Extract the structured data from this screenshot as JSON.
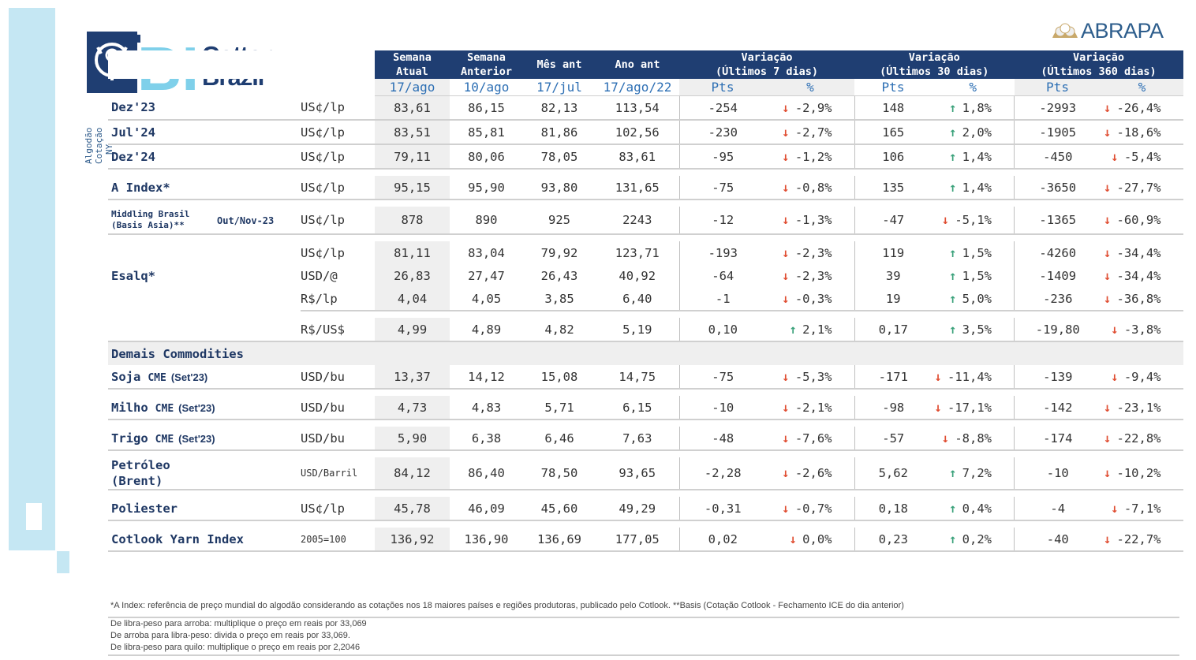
{
  "brand": {
    "logo_bi": "BI",
    "logo_title_1": "Cotton",
    "logo_title_2": "Brazil",
    "partner": "ABRAPA"
  },
  "side_label": {
    "line1": "Algodão",
    "line2": "Cotação",
    "line3": "NY"
  },
  "header": {
    "col_current": [
      "Semana",
      "Atual"
    ],
    "col_prev": [
      "Semana",
      "Anterior"
    ],
    "col_month": "Mês ant",
    "col_year": "Ano ant",
    "var7": [
      "Variação",
      "(Últimos 7 dias)"
    ],
    "var30": [
      "Variação",
      "(Últimos 30 dias)"
    ],
    "var360": [
      "Variação",
      "(Últimos 360 dias)"
    ]
  },
  "subheader": {
    "d1": "17/ago",
    "d2": "10/ago",
    "d3": "17/jul",
    "d4": "17/ago/22",
    "pts": "Pts",
    "pct": "%"
  },
  "rows": [
    {
      "name": "Dez'23",
      "unit": "US¢/lp",
      "v": [
        "83,61",
        "86,15",
        "82,13",
        "113,54"
      ],
      "p7": "-254",
      "c7": "-2,9%",
      "d7": "dn",
      "p30": "148",
      "c30": "1,8%",
      "d30": "up",
      "p360": "-2993",
      "c360": "-26,4%",
      "d360": "dn"
    },
    {
      "name": "Jul'24",
      "unit": "US¢/lp",
      "v": [
        "83,51",
        "85,81",
        "81,86",
        "102,56"
      ],
      "p7": "-230",
      "c7": "-2,7%",
      "d7": "dn",
      "p30": "165",
      "c30": "2,0%",
      "d30": "up",
      "p360": "-1905",
      "c360": "-18,6%",
      "d360": "dn"
    },
    {
      "name": "Dez'24",
      "unit": "US¢/lp",
      "v": [
        "79,11",
        "80,06",
        "78,05",
        "83,61"
      ],
      "p7": "-95",
      "c7": "-1,2%",
      "d7": "dn",
      "p30": "106",
      "c30": "1,4%",
      "d30": "up",
      "p360": "-450",
      "c360": "-5,4%",
      "d360": "dn"
    },
    {
      "name": "A Index*",
      "unit": "US¢/lp",
      "v": [
        "95,15",
        "95,90",
        "93,80",
        "131,65"
      ],
      "p7": "-75",
      "c7": "-0,8%",
      "d7": "dn",
      "p30": "135",
      "c30": "1,4%",
      "d30": "up",
      "p360": "-3650",
      "c360": "-27,7%",
      "d360": "dn"
    },
    {
      "name": "Middling Brasil",
      "name2": "(Basis Asia)**",
      "extra": "Out/Nov-23",
      "unit": "US¢/lp",
      "v": [
        "878",
        "890",
        "925",
        "2243"
      ],
      "p7": "-12",
      "c7": "-1,3%",
      "d7": "dn",
      "p30": "-47",
      "c30": "-5,1%",
      "d30": "dn",
      "p360": "-1365",
      "c360": "-60,9%",
      "d360": "dn"
    },
    {
      "name": "Esalq*",
      "unit": "US¢/lp",
      "v": [
        "81,11",
        "83,04",
        "79,92",
        "123,71"
      ],
      "p7": "-193",
      "c7": "-2,3%",
      "d7": "dn",
      "p30": "119",
      "c30": "1,5%",
      "d30": "up",
      "p360": "-4260",
      "c360": "-34,4%",
      "d360": "dn"
    },
    {
      "name": "",
      "unit": "USD/@",
      "v": [
        "26,83",
        "27,47",
        "26,43",
        "40,92"
      ],
      "p7": "-64",
      "c7": "-2,3%",
      "d7": "dn",
      "p30": "39",
      "c30": "1,5%",
      "d30": "up",
      "p360": "-1409",
      "c360": "-34,4%",
      "d360": "dn"
    },
    {
      "name": "",
      "unit": "R$/lp",
      "v": [
        "4,04",
        "4,05",
        "3,85",
        "6,40"
      ],
      "p7": "-1",
      "c7": "-0,3%",
      "d7": "dn",
      "p30": "19",
      "c30": "5,0%",
      "d30": "up",
      "p360": "-236",
      "c360": "-36,8%",
      "d360": "dn"
    },
    {
      "name": "",
      "unit": "R$/US$",
      "v": [
        "4,99",
        "4,89",
        "4,82",
        "5,19"
      ],
      "p7": "0,10",
      "c7": "2,1%",
      "d7": "up",
      "p30": "0,17",
      "c30": "3,5%",
      "d30": "up",
      "p360": "-19,80",
      "c360": "-3,8%",
      "d360": "dn"
    },
    {
      "section": "Demais Commodities"
    },
    {
      "name": "Soja",
      "name_suffix": "CME",
      "name_ext": "(Set'23)",
      "unit": "USD/bu",
      "v": [
        "13,37",
        "14,12",
        "15,08",
        "14,75"
      ],
      "p7": "-75",
      "c7": "-5,3%",
      "d7": "dn",
      "p30": "-171",
      "c30": "-11,4%",
      "d30": "dn",
      "p360": "-139",
      "c360": "-9,4%",
      "d360": "dn"
    },
    {
      "name": "Milho",
      "name_suffix": "CME",
      "name_ext": "(Set'23)",
      "unit": "USD/bu",
      "v": [
        "4,73",
        "4,83",
        "5,71",
        "6,15"
      ],
      "p7": "-10",
      "c7": "-2,1%",
      "d7": "dn",
      "p30": "-98",
      "c30": "-17,1%",
      "d30": "dn",
      "p360": "-142",
      "c360": "-23,1%",
      "d360": "dn"
    },
    {
      "name": "Trigo",
      "name_suffix": "CME",
      "name_ext": "(Set'23)",
      "unit": "USD/bu",
      "v": [
        "5,90",
        "6,38",
        "6,46",
        "7,63"
      ],
      "p7": "-48",
      "c7": "-7,6%",
      "d7": "dn",
      "p30": "-57",
      "c30": "-8,8%",
      "d30": "dn",
      "p360": "-174",
      "c360": "-22,8%",
      "d360": "dn"
    },
    {
      "name": "Petróleo",
      "name2": "(Brent)",
      "unit": "USD/Barril",
      "v": [
        "84,12",
        "86,40",
        "78,50",
        "93,65"
      ],
      "p7": "-2,28",
      "c7": "-2,6%",
      "d7": "dn",
      "p30": "5,62",
      "c30": "7,2%",
      "d30": "up",
      "p360": "-10",
      "c360": "-10,2%",
      "d360": "dn"
    },
    {
      "name": "Poliester",
      "unit": "US¢/lp",
      "v": [
        "45,78",
        "46,09",
        "45,60",
        "49,29"
      ],
      "p7": "-0,31",
      "c7": "-0,7%",
      "d7": "dn",
      "p30": "0,18",
      "c30": "0,4%",
      "d30": "up",
      "p360": "-4",
      "c360": "-7,1%",
      "d360": "dn"
    },
    {
      "name": "Cotlook Yarn Index",
      "unit": "2005=100",
      "v": [
        "136,92",
        "136,90",
        "136,69",
        "177,05"
      ],
      "p7": "0,02",
      "c7": "0,0%",
      "d7": "dn",
      "p30": "0,23",
      "c30": "0,2%",
      "d30": "up",
      "p360": "-40",
      "c360": "-22,7%",
      "d360": "dn"
    }
  ],
  "footnotes": {
    "n1": "*A Index: referência de preço mundial do algodão considerando as cotações nos 18 maiores países e regiões produtoras, publicado pelo Cotlook. **Basis (Cotação Cotlook - Fechamento ICE do dia anterior)",
    "n2": "De libra-peso para arroba: multiplique o preço em reais por 33,069",
    "n3": "De arroba para libra-peso: divida o preço em reais por 33,069.",
    "n4": "De libra-peso para quilo: multiplique o preço em reais por 2,2046"
  },
  "colors": {
    "header_bg": "#1f3e72",
    "accent_blue": "#2d6fb4",
    "up": "#3aa17a",
    "down": "#e04e33",
    "side_bar": "#c5e7f3"
  }
}
